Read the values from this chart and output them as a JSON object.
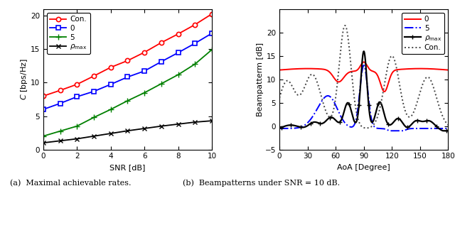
{
  "left_plot": {
    "xlabel": "SNR [dB]",
    "ylabel": "$\\mathit{C}$ [bps/Hz]",
    "xlim": [
      0,
      10
    ],
    "ylim": [
      0,
      21
    ],
    "xticks": [
      0,
      2,
      4,
      6,
      8,
      10
    ],
    "yticks": [
      0,
      5,
      10,
      15,
      20
    ],
    "snr": [
      0,
      1,
      2,
      3,
      4,
      5,
      6,
      7,
      8,
      9,
      10
    ],
    "con_values": [
      8.0,
      8.85,
      9.75,
      11.0,
      12.3,
      13.3,
      14.55,
      16.0,
      17.3,
      18.7,
      20.3
    ],
    "zero_values": [
      6.0,
      6.9,
      7.9,
      8.7,
      9.75,
      10.85,
      11.75,
      13.15,
      14.5,
      15.9,
      17.4
    ],
    "five_values": [
      2.0,
      2.75,
      3.5,
      4.8,
      6.0,
      7.3,
      8.5,
      9.85,
      11.2,
      12.8,
      14.95
    ],
    "rhomax_values": [
      1.0,
      1.3,
      1.6,
      2.0,
      2.4,
      2.8,
      3.15,
      3.5,
      3.8,
      4.1,
      4.3
    ],
    "con_color": "#FF0000",
    "zero_color": "#0000FF",
    "five_color": "#008000",
    "rhomax_color": "#000000"
  },
  "right_plot": {
    "xlabel": "AoA [Degree]",
    "ylabel": "Beampatterm [dB]",
    "xlim": [
      0,
      180
    ],
    "ylim": [
      -5,
      25
    ],
    "xticks": [
      0,
      30,
      60,
      90,
      120,
      150,
      180
    ],
    "yticks": [
      -5,
      0,
      5,
      10,
      15,
      20
    ],
    "zero_color": "#FF0000",
    "five_color": "#0000FF",
    "rhomax_color": "#000000",
    "con_color": "#444444"
  },
  "caption_a": "(a)  Maximal achievable rates.",
  "caption_b": "(b)  Beampatterns under SNR = 10 dB."
}
